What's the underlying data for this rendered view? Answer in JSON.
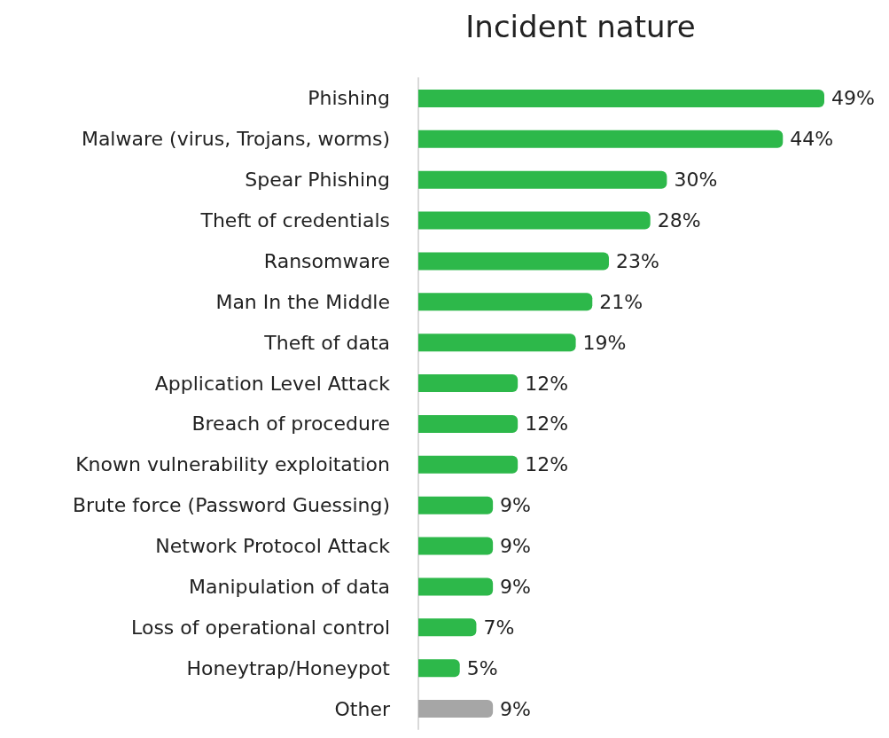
{
  "chart_data": {
    "type": "bar",
    "orientation": "horizontal",
    "title": "Incident nature",
    "categories": [
      "Phishing",
      "Malware (virus, Trojans, worms)",
      "Spear Phishing",
      "Theft of credentials",
      "Ransomware",
      "Man In the Middle",
      "Theft of data",
      "Application Level Attack",
      "Breach of procedure",
      "Known vulnerability exploitation",
      "Brute force (Password Guessing)",
      "Network Protocol Attack",
      "Manipulation of data",
      "Loss of operational control",
      "Honeytrap/Honeypot",
      "Other"
    ],
    "values": [
      49,
      44,
      30,
      28,
      23,
      21,
      19,
      12,
      12,
      12,
      9,
      9,
      9,
      7,
      5,
      9
    ],
    "colors": [
      "#2db84a",
      "#2db84a",
      "#2db84a",
      "#2db84a",
      "#2db84a",
      "#2db84a",
      "#2db84a",
      "#2db84a",
      "#2db84a",
      "#2db84a",
      "#2db84a",
      "#2db84a",
      "#2db84a",
      "#2db84a",
      "#2db84a",
      "#a6a6a6"
    ],
    "value_labels": [
      "49%",
      "44%",
      "30%",
      "28%",
      "23%",
      "21%",
      "19%",
      "12%",
      "12%",
      "12%",
      "9%",
      "9%",
      "9%",
      "7%",
      "5%",
      "9%"
    ],
    "tick_labels": "y",
    "grid": false
  }
}
